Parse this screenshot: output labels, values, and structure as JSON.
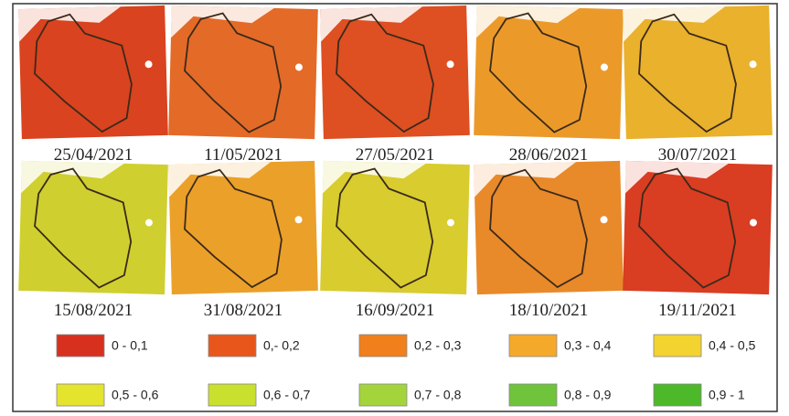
{
  "panels": [
    {
      "date": "25/04/2021"
    },
    {
      "date": "11/05/2021"
    },
    {
      "date": "27/05/2021"
    },
    {
      "date": "28/06/2021"
    },
    {
      "date": "30/07/2021"
    },
    {
      "date": "15/08/2021"
    },
    {
      "date": "31/08/2021"
    },
    {
      "date": "16/09/2021"
    },
    {
      "date": "18/10/2021"
    },
    {
      "date": "19/11/2021"
    }
  ],
  "legend": [
    {
      "label": "0 - 0,1",
      "color": "#d7301f"
    },
    {
      "label": "0,- 0,2",
      "color": "#e8561c"
    },
    {
      "label": "0,2 - 0,3",
      "color": "#f07f1c"
    },
    {
      "label": "0,3 - 0,4",
      "color": "#f5a92a"
    },
    {
      "label": "0,4 - 0,5",
      "color": "#f3d330"
    },
    {
      "label": "0,5 - 0,6",
      "color": "#e4e32e"
    },
    {
      "label": "0,6 - 0,7",
      "color": "#c9e02e"
    },
    {
      "label": "0,7 - 0,8",
      "color": "#a3d43c"
    },
    {
      "label": "0,8 - 0,9",
      "color": "#6fc43b"
    },
    {
      "label": "0,9 - 1",
      "color": "#4db82a"
    }
  ]
}
